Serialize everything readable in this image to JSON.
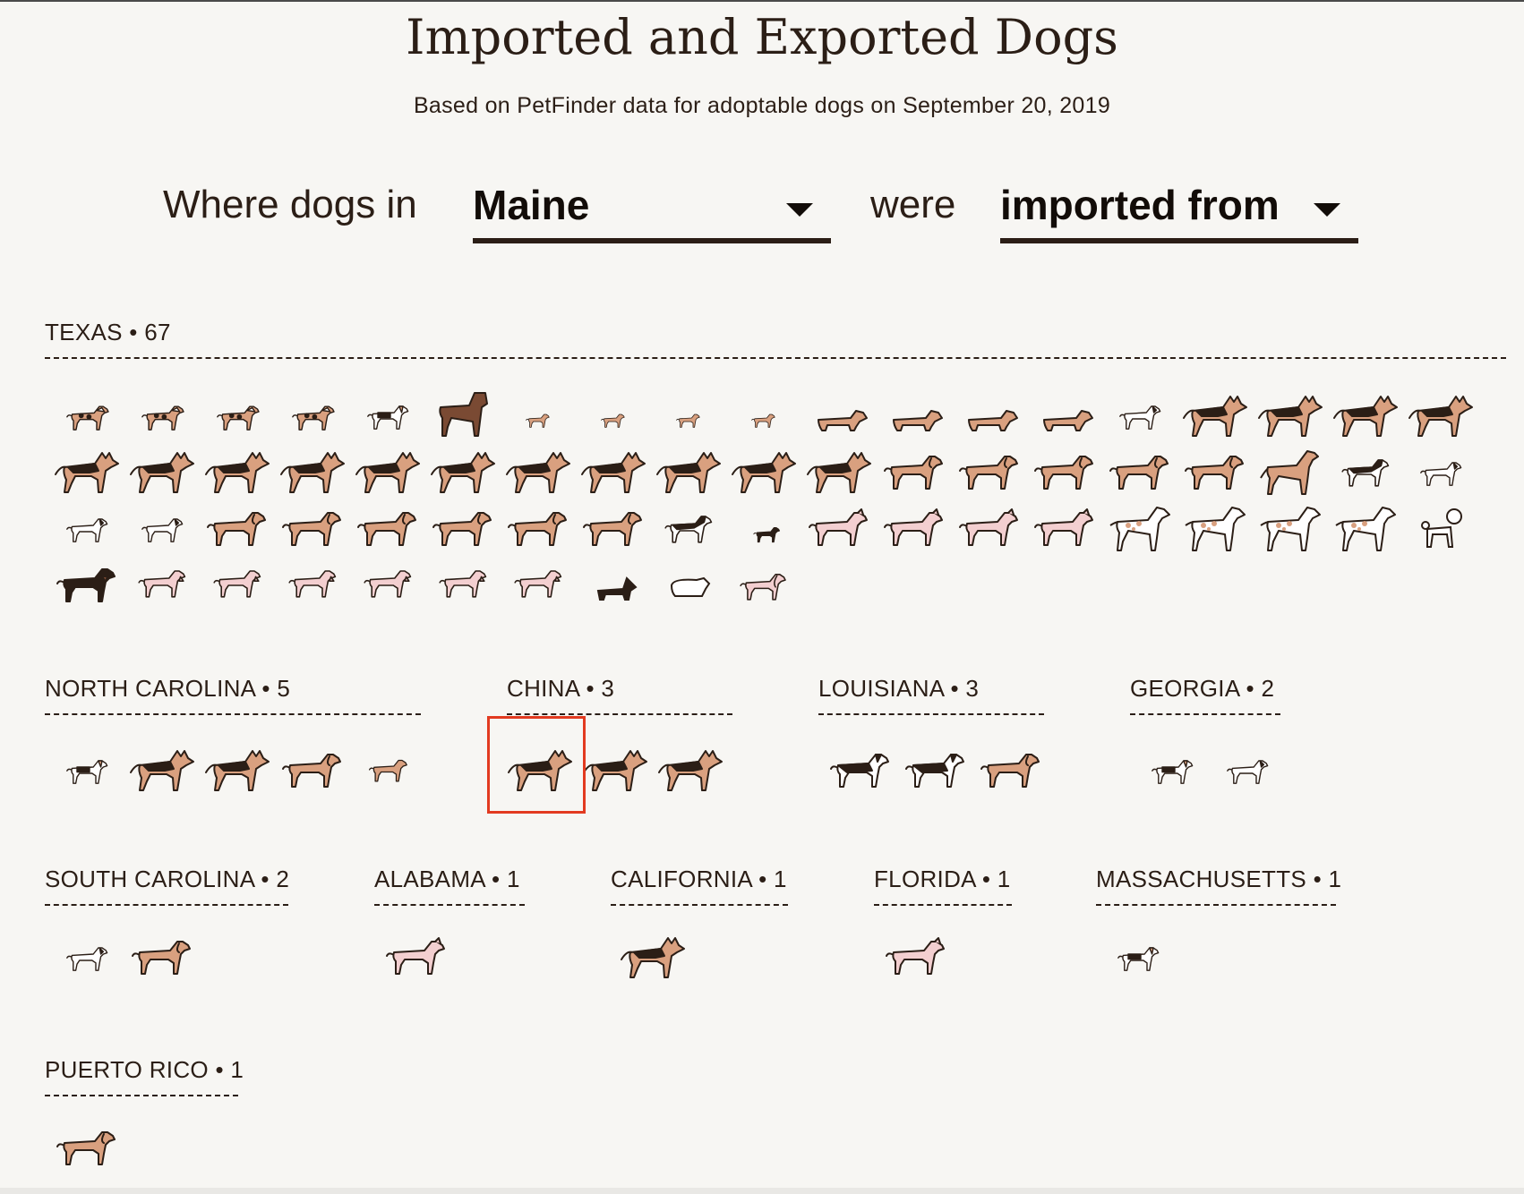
{
  "page": {
    "title": "Imported and Exported Dogs",
    "subtitle": "Based on PetFinder data for adoptable dogs on September 20, 2019"
  },
  "controls": {
    "prefix": "Where dogs in",
    "state_value": "Maine",
    "middle": "were",
    "direction_value": "imported from"
  },
  "colors": {
    "tan": "#d9a07f",
    "pink": "#f3cfd0",
    "dark": "#2b1e16",
    "white": "#ffffff",
    "brown": "#7a4a33",
    "highlight": "#e23a20"
  },
  "groups": [
    {
      "label": "TEXAS • 67",
      "dogs": [
        "aussie",
        "aussie",
        "aussie",
        "aussie",
        "beagle",
        "boxer",
        "chihuahua",
        "chihuahua",
        "chihuahua",
        "chihuahua",
        "dachshund",
        "dachshund",
        "dachshund",
        "dachshund",
        "terrier-white",
        "shepherd",
        "shepherd",
        "shepherd",
        "shepherd",
        "shepherd",
        "shepherd",
        "shepherd",
        "shepherd",
        "shepherd",
        "shepherd",
        "shepherd",
        "shepherd",
        "shepherd",
        "shepherd",
        "shepherd",
        "retriever",
        "retriever",
        "retriever",
        "retriever",
        "retriever",
        "hound-tall",
        "husky",
        "terrier-white",
        "terrier-white",
        "terrier-white",
        "retriever",
        "retriever",
        "retriever",
        "retriever",
        "retriever",
        "retriever",
        "husky",
        "minpin",
        "pit-pink",
        "pit-pink",
        "pit-pink",
        "pit-pink",
        "pointer",
        "pointer",
        "pointer",
        "pointer",
        "poodle",
        "rottweiler",
        "schnauzer-pink",
        "schnauzer-pink",
        "schnauzer-pink",
        "schnauzer-pink",
        "schnauzer-pink",
        "schnauzer-pink",
        "scottie",
        "shihtzu",
        "spaniel-pink"
      ]
    },
    {
      "label": "NORTH CAROLINA • 5",
      "dogs": [
        "beagle",
        "shepherd",
        "shepherd",
        "retriever",
        "hound-small"
      ]
    },
    {
      "label": "CHINA • 3",
      "dogs": [
        "shepherd",
        "shepherd",
        "shepherd"
      ]
    },
    {
      "label": "LOUISIANA • 3",
      "dogs": [
        "border-collie",
        "border-collie",
        "retriever"
      ]
    },
    {
      "label": "GEORGIA • 2",
      "dogs": [
        "beagle",
        "terrier-white"
      ]
    },
    {
      "label": "SOUTH CAROLINA • 2",
      "dogs": [
        "terrier-white",
        "retriever"
      ]
    },
    {
      "label": "ALABAMA • 1",
      "dogs": [
        "pit-pink"
      ]
    },
    {
      "label": "CALIFORNIA • 1",
      "dogs": [
        "shepherd"
      ]
    },
    {
      "label": "FLORIDA • 1",
      "dogs": [
        "pit-pink"
      ]
    },
    {
      "label": "MASSACHUSETTS • 1",
      "dogs": [
        "beagle"
      ]
    },
    {
      "label": "PUERTO RICO • 1",
      "dogs": [
        "retriever"
      ]
    }
  ]
}
